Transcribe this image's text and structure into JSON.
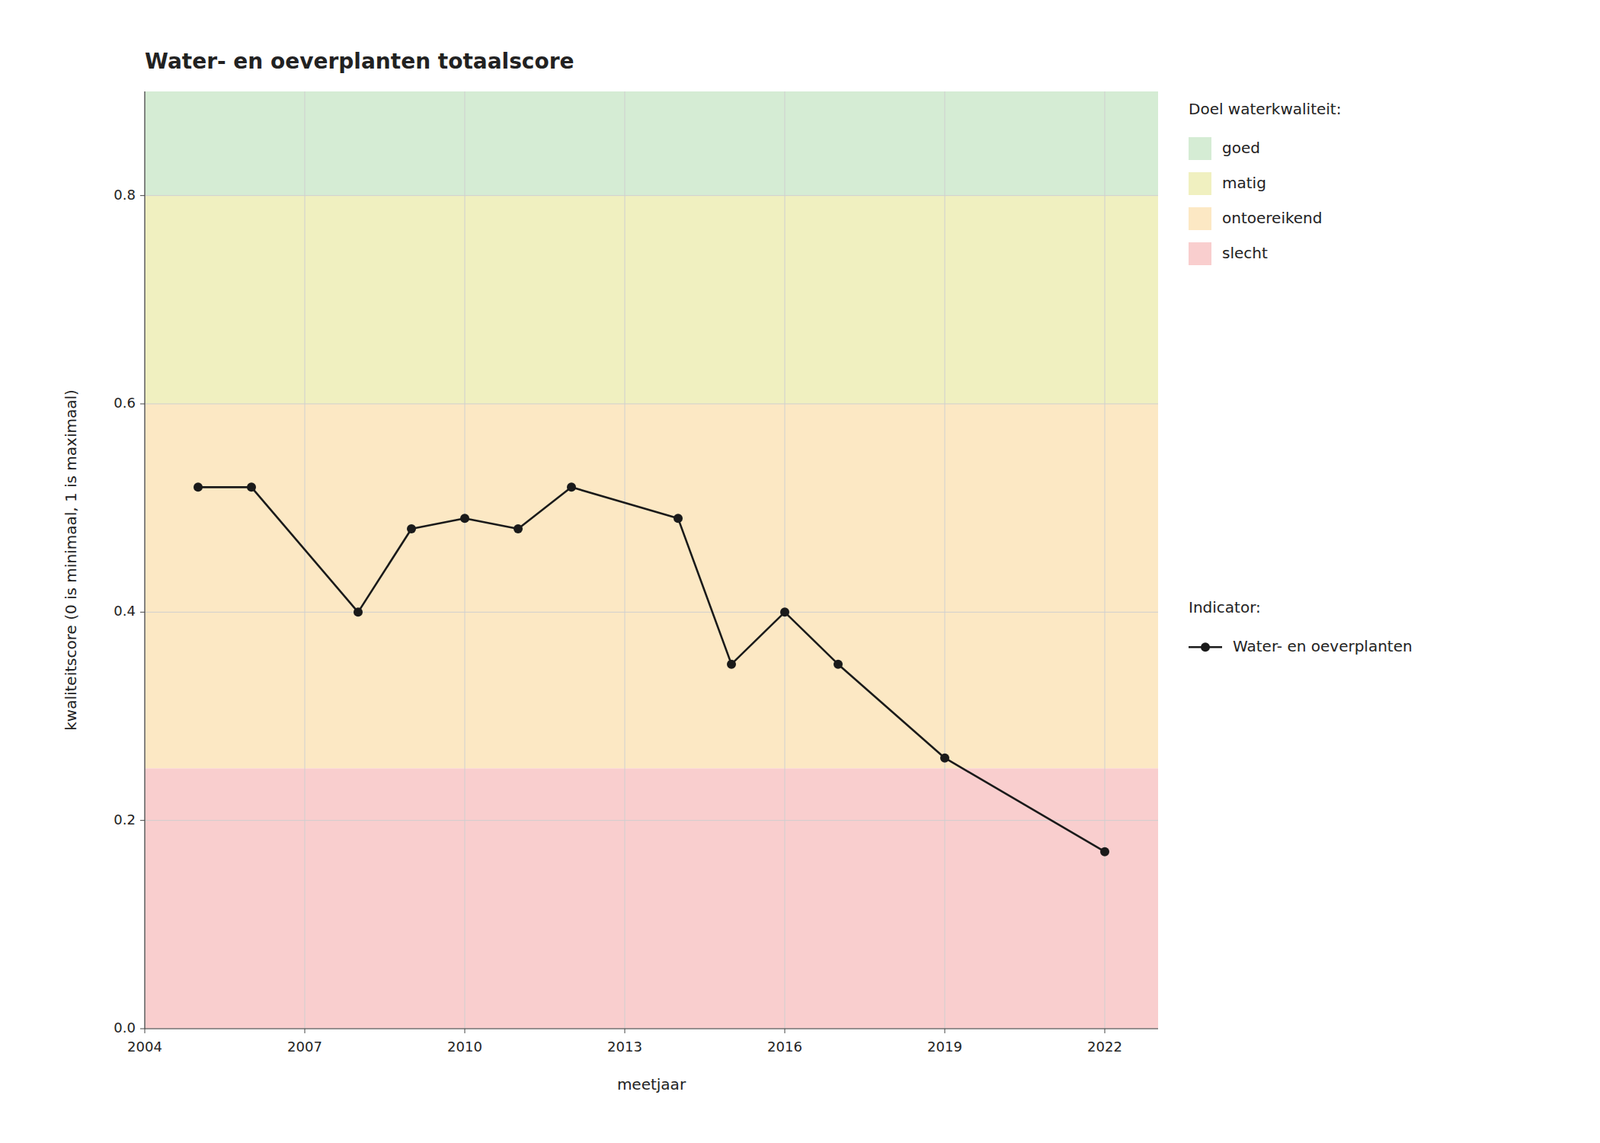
{
  "chart_data": {
    "type": "line",
    "title": "Water- en oeverplanten totaalscore",
    "xlabel": "meetjaar",
    "ylabel": "kwaliteitscore (0 is minimaal, 1 is maximaal)",
    "x": [
      2005,
      2006,
      2008,
      2009,
      2010,
      2011,
      2012,
      2014,
      2015,
      2016,
      2017,
      2019,
      2022
    ],
    "series": [
      {
        "name": "Water- en oeverplanten",
        "color": "#1a1a1a",
        "marker": "circle",
        "line_style": "solid",
        "values": [
          0.52,
          0.52,
          0.4,
          0.48,
          0.49,
          0.48,
          0.52,
          0.49,
          0.35,
          0.4,
          0.35,
          0.26,
          0.17
        ]
      }
    ],
    "xlim": [
      2004,
      2023
    ],
    "ylim": [
      0.0,
      0.9
    ],
    "xticks": [
      2004,
      2007,
      2010,
      2013,
      2016,
      2019,
      2022
    ],
    "yticks": [
      {
        "value": 0.0,
        "label": "0.0"
      },
      0.2,
      0.4,
      0.6,
      0.8
    ],
    "grid": true,
    "legend": "right",
    "legend_title": "Indicator:",
    "zones_title": "Doel waterkwaliteit:",
    "zones": [
      {
        "name": "goed",
        "color": "#d5ecd4",
        "ymin": 0.8,
        "ymax": 0.9
      },
      {
        "name": "matig",
        "color": "#f0f0c0",
        "ymin": 0.6,
        "ymax": 0.8
      },
      {
        "name": "ontoereikend",
        "color": "#fce8c4",
        "ymin": 0.25,
        "ymax": 0.6
      },
      {
        "name": "slecht",
        "color": "#f9cece",
        "ymin": 0.0,
        "ymax": 0.25
      }
    ]
  }
}
